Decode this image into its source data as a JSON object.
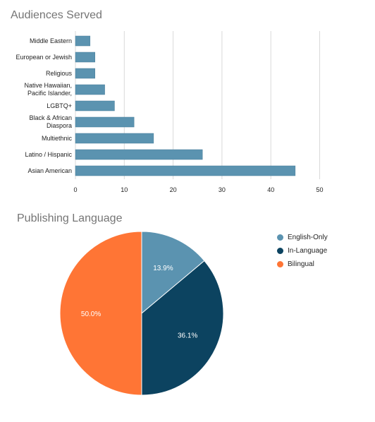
{
  "chart_data": [
    {
      "type": "bar",
      "orientation": "horizontal",
      "title": "Audiences Served",
      "categories": [
        "Middle Eastern",
        "European or Jewish",
        "Religious",
        [
          "Native Hawaiian,",
          "Pacific Islander,"
        ],
        "LGBTQ+",
        [
          "Black & African",
          "Diaspora"
        ],
        "Multiethnic",
        "Latino / Hispanic",
        "Asian American"
      ],
      "values": [
        3,
        4,
        4,
        6,
        8,
        12,
        16,
        26,
        45
      ],
      "xlim": [
        0,
        50
      ],
      "xticks": [
        "0",
        "10",
        "20",
        "30",
        "40",
        "50"
      ],
      "grid": true,
      "color": "#5b93b0"
    },
    {
      "type": "pie",
      "title": "Publishing Language",
      "labels": [
        "English-Only",
        "In-Language",
        "Bilingual"
      ],
      "values": [
        13.9,
        36.1,
        50.0
      ],
      "value_labels": [
        "13.9%",
        "36.1%",
        "50.0%"
      ],
      "colors": [
        "#5b93b0",
        "#0c4360",
        "#ff7535"
      ],
      "legend_position": "right"
    }
  ]
}
